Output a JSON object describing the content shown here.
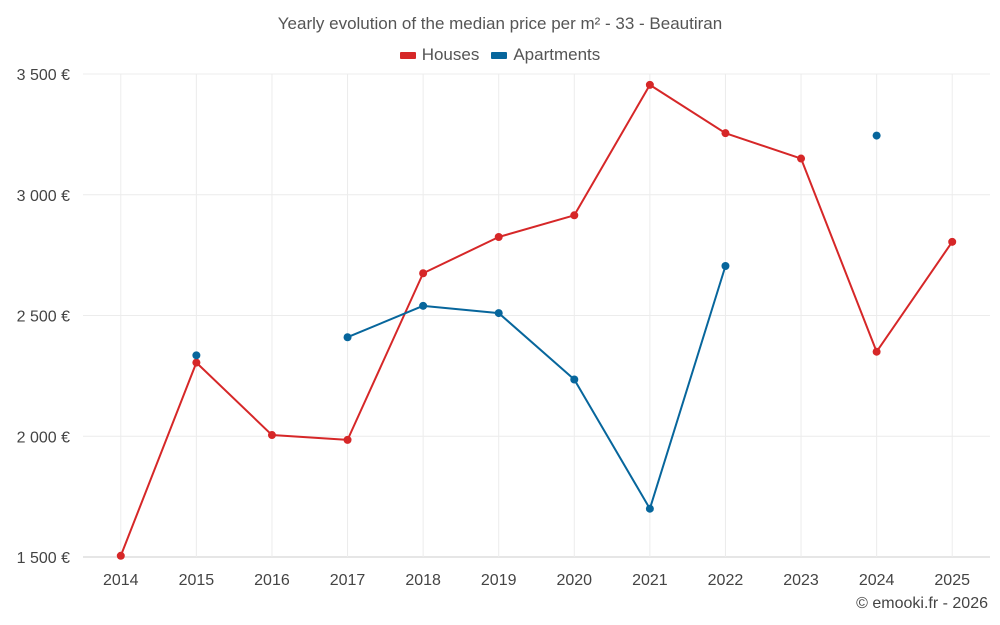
{
  "chart_data": {
    "type": "line",
    "title": "Yearly evolution of the median price per m² - 33 - Beautiran",
    "xlabel": "",
    "ylabel": "",
    "categories": [
      "2014",
      "2015",
      "2016",
      "2017",
      "2018",
      "2019",
      "2020",
      "2021",
      "2022",
      "2023",
      "2024",
      "2025"
    ],
    "ylim": [
      1500,
      3500
    ],
    "yticks": [
      1500,
      2000,
      2500,
      3000,
      3500
    ],
    "ytick_labels": [
      "1 500 €",
      "2 000 €",
      "2 500 €",
      "3 000 €",
      "3 500 €"
    ],
    "grid": true,
    "legend_position": "top-center",
    "series": [
      {
        "name": "Houses",
        "color": "#d62728",
        "values": [
          1505,
          2305,
          2005,
          1985,
          2675,
          2825,
          2915,
          3455,
          3255,
          3150,
          2350,
          2805
        ]
      },
      {
        "name": "Apartments",
        "color": "#07669c",
        "values": [
          null,
          2335,
          null,
          2410,
          2540,
          2510,
          2235,
          1700,
          2705,
          null,
          3245,
          null
        ]
      }
    ]
  },
  "credit": "© emooki.fr - 2026"
}
